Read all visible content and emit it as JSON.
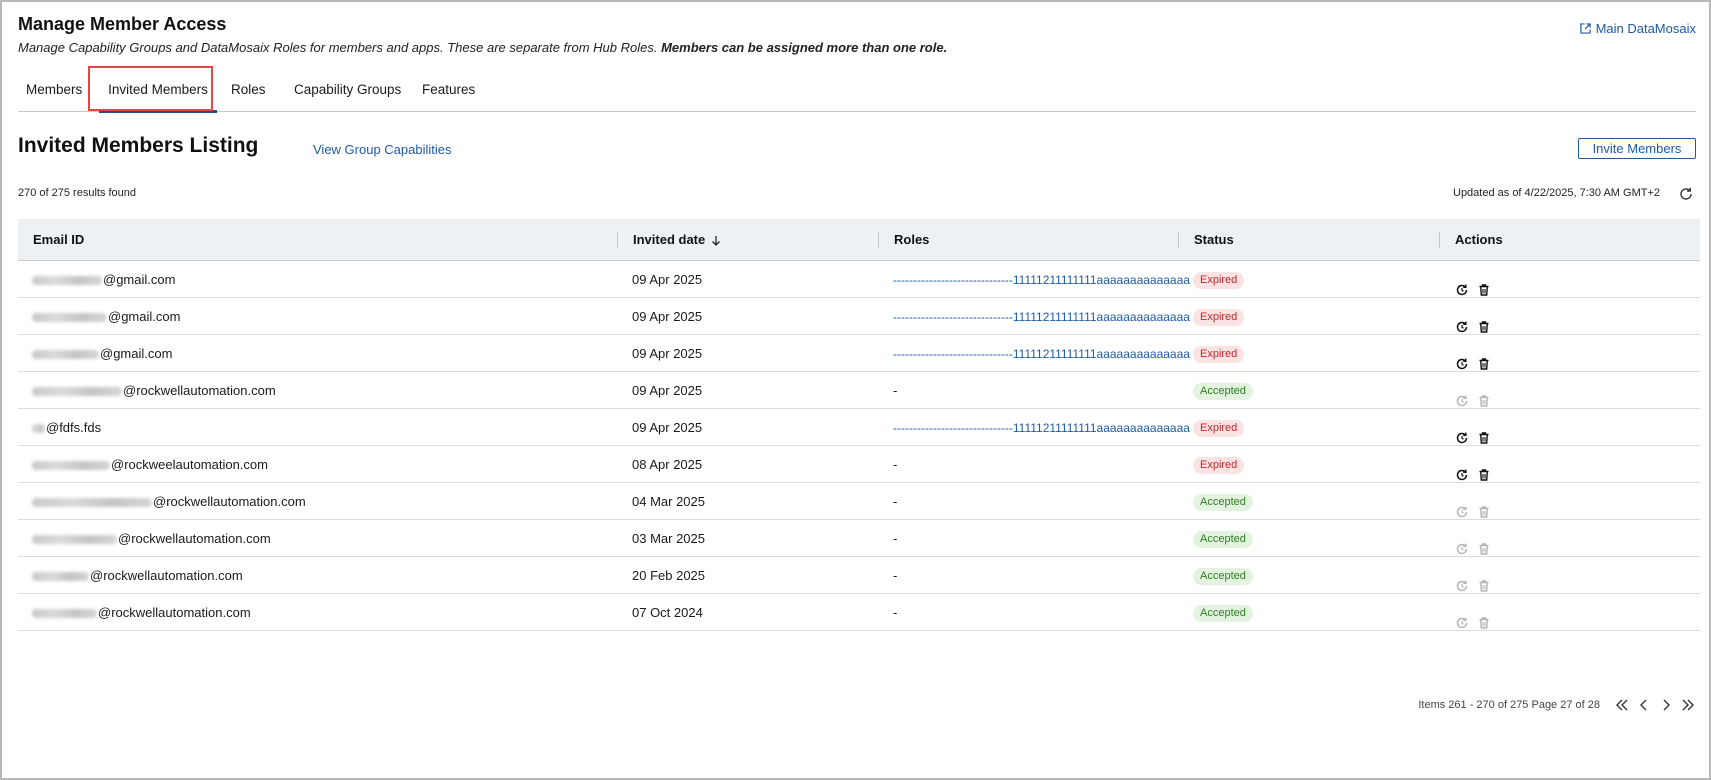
{
  "header": {
    "title": "Manage Member Access",
    "subtitle_regular": "Manage Capability Groups and DataMosaix Roles for members and apps. These are separate from Hub Roles. ",
    "subtitle_bold": "Members can be assigned more than one role.",
    "external_link": "Main DataMosaix"
  },
  "tabs": [
    {
      "label": "Members",
      "active": false
    },
    {
      "label": "Invited Members",
      "active": true
    },
    {
      "label": "Roles",
      "active": false
    },
    {
      "label": "Capability Groups",
      "active": false
    },
    {
      "label": "Features",
      "active": false
    }
  ],
  "listing": {
    "title": "Invited Members Listing",
    "view_capabilities_link": "View Group Capabilities",
    "invite_button": "Invite Members",
    "results_text": "270 of 275 results found",
    "updated_text": "Updated as of 4/22/2025, 7:30 AM GMT+2"
  },
  "table": {
    "columns": {
      "email": "Email ID",
      "invited_date": "Invited date",
      "roles": "Roles",
      "status": "Status",
      "actions": "Actions"
    },
    "rows": [
      {
        "email": "@gmail.com",
        "date": "09 Apr 2025",
        "roles": "------------------------------11111211111111aaaaaaaaaaaaaa",
        "status": "Expired"
      },
      {
        "email": "@gmail.com",
        "date": "09 Apr 2025",
        "roles": "------------------------------11111211111111aaaaaaaaaaaaaa",
        "status": "Expired"
      },
      {
        "email": "@gmail.com",
        "date": "09 Apr 2025",
        "roles": "------------------------------11111211111111aaaaaaaaaaaaaa",
        "status": "Expired"
      },
      {
        "email": "@rockwellautomation.com",
        "date": "09 Apr 2025",
        "roles": "-",
        "status": "Accepted"
      },
      {
        "email": "@fdfs.fds",
        "date": "09 Apr 2025",
        "roles": "------------------------------11111211111111aaaaaaaaaaaaaa",
        "status": "Expired"
      },
      {
        "email": "@rockweelautomation.com",
        "date": "08 Apr 2025",
        "roles": "-",
        "status": "Expired"
      },
      {
        "email": "@rockwellautomation.com",
        "date": "04 Mar 2025",
        "roles": "-",
        "status": "Accepted"
      },
      {
        "email": "@rockwellautomation.com",
        "date": "03 Mar 2025",
        "roles": "-",
        "status": "Accepted"
      },
      {
        "email": "@rockwellautomation.com",
        "date": "20 Feb 2025",
        "roles": "-",
        "status": "Accepted"
      },
      {
        "email": "@rockwellautomation.com",
        "date": "07 Oct 2024",
        "roles": "-",
        "status": "Accepted"
      }
    ]
  },
  "pagination": {
    "text": "Items 261 - 270 of 275 Page 27 of 28"
  },
  "colors": {
    "link": "#1f5aa6",
    "active_tab": "#1f4f8f",
    "expired": "#c0262d",
    "accepted": "#2e7d23",
    "highlight": "#e04848"
  }
}
